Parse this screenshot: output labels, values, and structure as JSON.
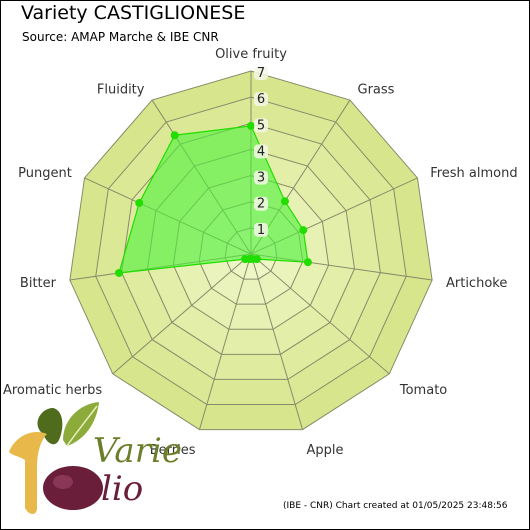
{
  "title": "Variety CASTIGLIONESE",
  "subtitle": "Source: AMAP Marche & IBE CNR",
  "footer": "(IBE - CNR) Chart created at 01/05/2025 23:48:56",
  "logo": {
    "word1": "Varietà",
    "word2": "lio",
    "icon": "olive-leaves-logo",
    "colors": {
      "leaf_dark": "#4f6b1c",
      "leaf_light": "#8cab3a",
      "script": "#6b7f2a",
      "numeral": "#e8b94a",
      "olive": "#6b1e3a"
    }
  },
  "colors": {
    "band_outer": "#d7e68c",
    "band_inner": "#eef6c6",
    "grid": "#8a8a6a",
    "series_fill": "#4ef03c",
    "series_stroke": "#22dd00",
    "marker": "#22dd00"
  },
  "chart_data": {
    "type": "radar",
    "title": "Variety CASTIGLIONESE",
    "subtitle": "Source: AMAP Marche & IBE CNR",
    "axes": [
      "Olive fruity",
      "Grass",
      "Fresh almond",
      "Artichoke",
      "Tomato",
      "Apple",
      "Berries",
      "Aromatic herbs",
      "Bitter",
      "Pungent",
      "Fluidity"
    ],
    "ticks": [
      "1",
      "2",
      "3",
      "4",
      "5",
      "6",
      "7"
    ],
    "range": [
      0,
      7
    ],
    "grid": true,
    "series": [
      {
        "values": [
          4.9,
          2.4,
          2.2,
          2.2,
          0.3,
          0.2,
          0.2,
          0.3,
          5.1,
          4.7,
          5.4
        ]
      }
    ]
  }
}
